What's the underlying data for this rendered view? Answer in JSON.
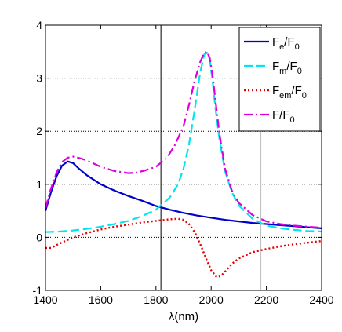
{
  "chart_data": {
    "type": "line",
    "xlabel": "λ(nm)",
    "ylabel": "",
    "xlim": [
      1400,
      2400
    ],
    "ylim": [
      -1,
      4
    ],
    "xticks": [
      1400,
      1600,
      1800,
      2000,
      2200,
      2400
    ],
    "yticks": [
      -1,
      0,
      1,
      2,
      3,
      4
    ],
    "xtick_labels": [
      "1400",
      "1600",
      "1800",
      "2000",
      "2200",
      "2400"
    ],
    "ytick_labels": [
      "-1",
      "0",
      "1",
      "2",
      "3",
      "4"
    ],
    "grid": "dotted",
    "vertical_lines": [
      {
        "x": 1818,
        "style": "solid",
        "color": "#000000"
      },
      {
        "x": 2180,
        "style": "solid",
        "color": "#bdbdbd"
      }
    ],
    "legend_position": "top-right",
    "series": [
      {
        "name": "Fe/F0",
        "main": "F",
        "sub1": "e",
        "slash": "/F",
        "sub2": "0",
        "color": "#0000cc",
        "dash": "",
        "width": 2.2,
        "x": [
          1400,
          1420,
          1440,
          1460,
          1480,
          1500,
          1520,
          1550,
          1600,
          1650,
          1700,
          1750,
          1800,
          1850,
          1900,
          1950,
          2000,
          2050,
          2100,
          2150,
          2200,
          2250,
          2300,
          2350,
          2400
        ],
        "y": [
          0.5,
          0.85,
          1.15,
          1.35,
          1.43,
          1.4,
          1.3,
          1.17,
          1.0,
          0.88,
          0.78,
          0.69,
          0.59,
          0.52,
          0.46,
          0.41,
          0.37,
          0.33,
          0.3,
          0.27,
          0.25,
          0.23,
          0.21,
          0.19,
          0.17
        ]
      },
      {
        "name": "Fm/F0",
        "main": "F",
        "sub1": "m",
        "slash": "/F",
        "sub2": "0",
        "color": "#00e6ee",
        "dash": "11,5",
        "width": 2.2,
        "x": [
          1400,
          1450,
          1500,
          1550,
          1600,
          1650,
          1700,
          1750,
          1800,
          1850,
          1880,
          1900,
          1920,
          1940,
          1960,
          1975,
          1985,
          1995,
          2005,
          2015,
          2030,
          2050,
          2075,
          2100,
          2150,
          2200,
          2250,
          2300,
          2350,
          2400
        ],
        "y": [
          0.1,
          0.11,
          0.13,
          0.16,
          0.2,
          0.25,
          0.31,
          0.4,
          0.52,
          0.75,
          1.0,
          1.3,
          1.75,
          2.4,
          3.1,
          3.45,
          3.48,
          3.35,
          2.95,
          2.45,
          1.85,
          1.25,
          0.85,
          0.6,
          0.35,
          0.22,
          0.17,
          0.14,
          0.12,
          0.11
        ]
      },
      {
        "name": "Fem/F0",
        "main": "F",
        "sub1": "em",
        "slash": "/F",
        "sub2": "0",
        "color": "#e60000",
        "dash": "2,3",
        "width": 2.4,
        "x": [
          1400,
          1420,
          1450,
          1500,
          1550,
          1600,
          1650,
          1700,
          1750,
          1800,
          1850,
          1880,
          1900,
          1920,
          1940,
          1960,
          1980,
          2000,
          2020,
          2035,
          2050,
          2075,
          2100,
          2150,
          2200,
          2250,
          2300,
          2350,
          2400
        ],
        "y": [
          -0.2,
          -0.2,
          -0.12,
          0.0,
          0.08,
          0.15,
          0.2,
          0.24,
          0.28,
          0.31,
          0.34,
          0.35,
          0.33,
          0.25,
          0.1,
          -0.12,
          -0.38,
          -0.62,
          -0.75,
          -0.73,
          -0.65,
          -0.5,
          -0.4,
          -0.28,
          -0.22,
          -0.17,
          -0.13,
          -0.1,
          -0.07
        ]
      },
      {
        "name": "F/F0",
        "main": "F",
        "sub1": "",
        "slash": "/F",
        "sub2": "0",
        "color": "#dd00dd",
        "dash": "11,4,2,4",
        "width": 2.2,
        "x": [
          1400,
          1420,
          1440,
          1460,
          1480,
          1500,
          1520,
          1550,
          1600,
          1650,
          1700,
          1730,
          1760,
          1800,
          1840,
          1870,
          1900,
          1920,
          1940,
          1960,
          1975,
          1985,
          1995,
          2005,
          2015,
          2030,
          2050,
          2075,
          2100,
          2150,
          2200,
          2250,
          2300,
          2350,
          2400
        ],
        "y": [
          0.55,
          0.92,
          1.22,
          1.42,
          1.5,
          1.52,
          1.5,
          1.45,
          1.33,
          1.25,
          1.21,
          1.22,
          1.26,
          1.33,
          1.5,
          1.75,
          2.1,
          2.5,
          2.95,
          3.3,
          3.48,
          3.5,
          3.38,
          3.05,
          2.6,
          1.95,
          1.3,
          0.88,
          0.65,
          0.42,
          0.3,
          0.25,
          0.22,
          0.2,
          0.18
        ]
      }
    ]
  }
}
